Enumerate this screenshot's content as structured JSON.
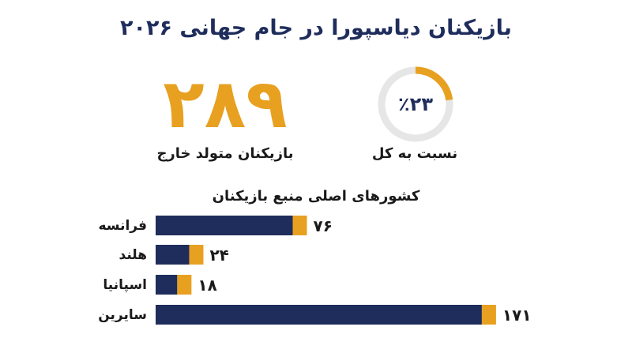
{
  "title": "بازیکنان دیاسپورا در جام جهانی ۲۰۲۶",
  "stat": {
    "value": "۲۸۹",
    "label": "بازیکنان متولد خارج"
  },
  "ratio": {
    "text": "٪۲۳",
    "percent": 23,
    "label": "نسبت به کل"
  },
  "colors": {
    "navy": "#1f2d5c",
    "orange": "#e8a020",
    "track": "#e6e6e6"
  },
  "chart_data": {
    "type": "bar",
    "title": "کشورهای اصلی منبع بازیکنان",
    "categories": [
      "فرانسه",
      "هلند",
      "اسپانیا",
      "سایرین"
    ],
    "values": [
      76,
      24,
      18,
      171
    ],
    "value_labels": [
      "۷۶",
      "۲۴",
      "۱۸",
      "۱۷۱"
    ],
    "xlabel": "",
    "ylabel": "",
    "grid": false
  }
}
